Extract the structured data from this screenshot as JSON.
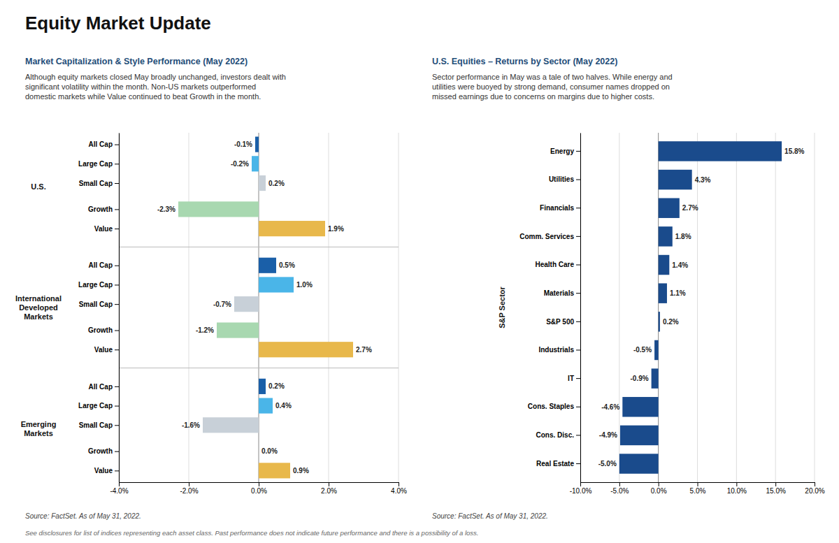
{
  "title": "Equity Market Update",
  "annotations": [
    "See disclosures for list of indices representing each asset class. Past performance does not indicate future performance and there is a possibility of a loss."
  ],
  "chart_data": [
    {
      "type": "bar",
      "orientation": "horizontal",
      "title": "Market Capitalization & Style Performance (May 2022)",
      "subtitle": "Although equity markets closed May broadly unchanged, investors dealt with\nsignificant volatility within the month. Non-US markets outperformed\ndomestic markets while Value continued to beat Growth in the month.",
      "annotations": [
        "Source: FactSet. As of May 31, 2022."
      ],
      "groups": [
        {
          "name": "U.S.",
          "categories": [
            "All Cap",
            "Large Cap",
            "Small Cap",
            "Growth",
            "Value"
          ],
          "values": [
            -0.1,
            -0.2,
            0.2,
            -2.3,
            1.9
          ],
          "value_labels": [
            "-0.1%",
            "-0.2%",
            "0.2%",
            "-2.3%",
            "1.9%"
          ],
          "colors": [
            "#1a5fa8",
            "#4ab5e8",
            "#c8d0d8",
            "#a8d8b0",
            "#e8b84b"
          ]
        },
        {
          "name": "International\nDeveloped\nMarkets",
          "categories": [
            "All Cap",
            "Large Cap",
            "Small Cap",
            "Growth",
            "Value"
          ],
          "values": [
            0.5,
            1.0,
            -0.7,
            -1.2,
            2.7
          ],
          "value_labels": [
            "0.5%",
            "1.0%",
            "-0.7%",
            "-1.2%",
            "2.7%"
          ],
          "colors": [
            "#1a5fa8",
            "#4ab5e8",
            "#c8d0d8",
            "#a8d8b0",
            "#e8b84b"
          ]
        },
        {
          "name": "Emerging\nMarkets",
          "categories": [
            "All Cap",
            "Large Cap",
            "Small Cap",
            "Growth",
            "Value"
          ],
          "values": [
            0.2,
            0.4,
            -1.6,
            0.0,
            0.9
          ],
          "value_labels": [
            "0.2%",
            "0.4%",
            "-1.6%",
            "0.0%",
            "0.9%"
          ],
          "colors": [
            "#1a5fa8",
            "#4ab5e8",
            "#c8d0d8",
            "#a8d8b0",
            "#e8b84b"
          ]
        }
      ],
      "xlim": [
        -4.0,
        4.0
      ],
      "xticks": [
        {
          "value": -4.0,
          "label": "-4.0%"
        },
        {
          "value": -2.0,
          "label": "-2.0%"
        },
        {
          "value": 0.0,
          "label": "0.0%"
        },
        {
          "value": 2.0,
          "label": "2.0%"
        },
        {
          "value": 4.0,
          "label": "4.0%"
        }
      ],
      "grid": true,
      "data_labels": true
    },
    {
      "type": "bar",
      "orientation": "horizontal",
      "title": "U.S. Equities – Returns by Sector (May 2022)",
      "subtitle": "Sector performance in May was a tale of two halves. While energy and\nutilities were buoyed by strong demand, consumer names dropped on\nmissed earnings due to concerns on margins due to higher costs.",
      "annotations": [
        "Source: FactSet. As of May 31, 2022."
      ],
      "categories": [
        "Energy",
        "Utilities",
        "Financials",
        "Comm. Services",
        "Health Care",
        "Materials",
        "S&P 500",
        "Industrials",
        "IT",
        "Cons. Staples",
        "Cons. Disc.",
        "Real Estate"
      ],
      "values": [
        15.8,
        4.3,
        2.7,
        1.8,
        1.4,
        1.1,
        0.2,
        -0.5,
        -0.9,
        -4.6,
        -4.9,
        -5.0
      ],
      "value_labels": [
        "15.8%",
        "4.3%",
        "2.7%",
        "1.8%",
        "1.4%",
        "1.1%",
        "0.2%",
        "-0.5%",
        "-0.9%",
        "-4.6%",
        "-4.9%",
        "-5.0%"
      ],
      "color": "#1a4b8c",
      "xlim": [
        -10.0,
        20.0
      ],
      "xticks": [
        {
          "value": -10.0,
          "label": "-10.0%"
        },
        {
          "value": -5.0,
          "label": "-5.0%"
        },
        {
          "value": 0.0,
          "label": "0.0%"
        },
        {
          "value": 5.0,
          "label": "5.0%"
        },
        {
          "value": 10.0,
          "label": "10.0%"
        },
        {
          "value": 15.0,
          "label": "15.0%"
        },
        {
          "value": 20.0,
          "label": "20.0%"
        }
      ],
      "ylabel": "S&P Sector",
      "grid": true,
      "data_labels": true
    }
  ]
}
